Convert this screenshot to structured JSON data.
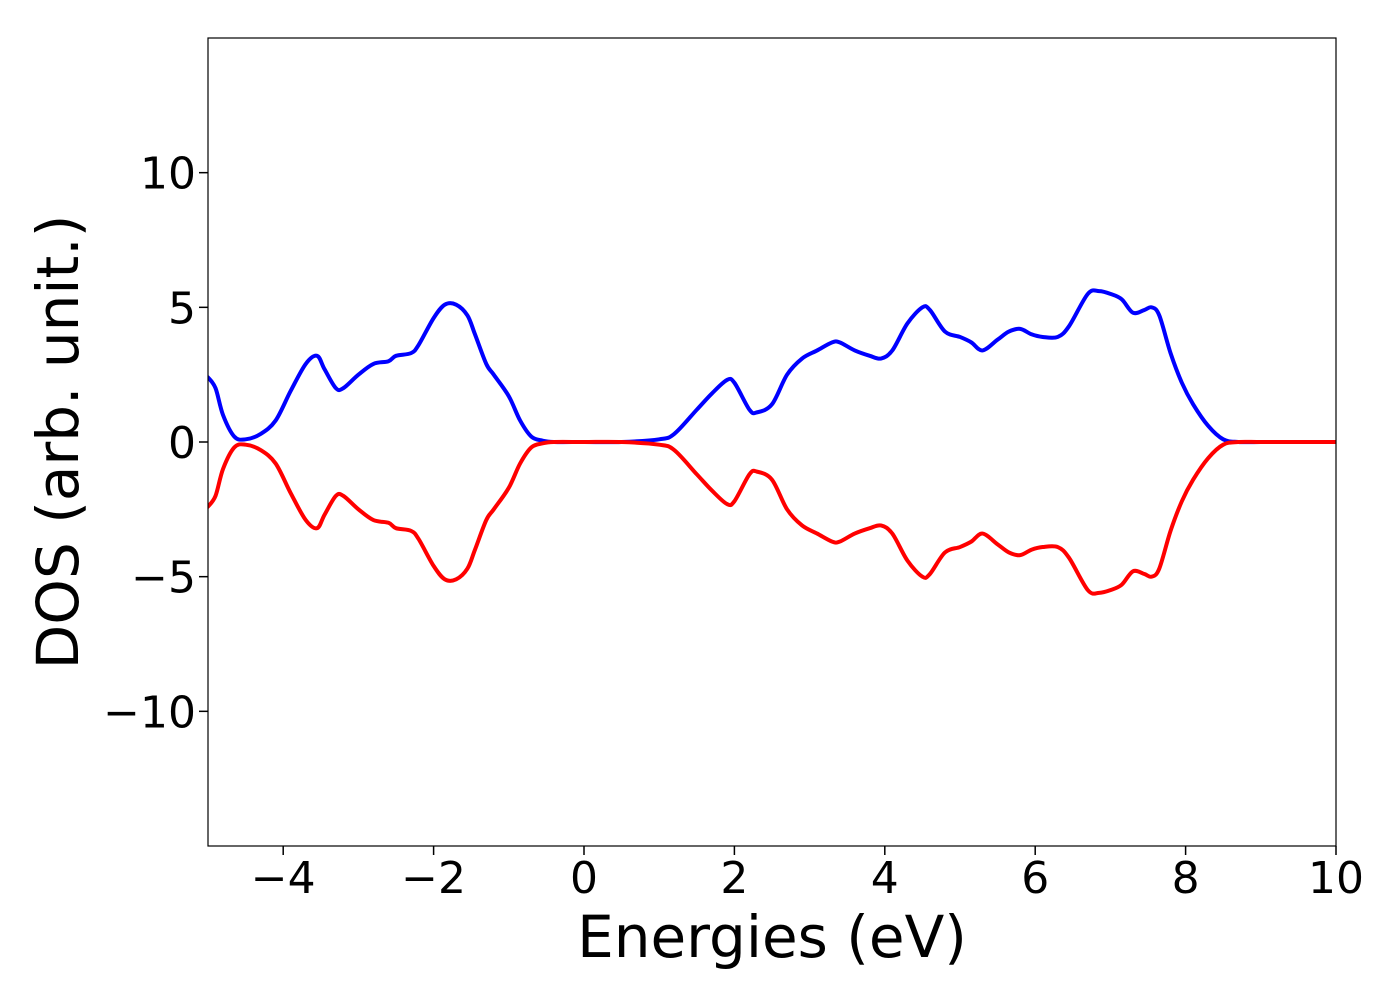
{
  "chart_data": {
    "type": "line",
    "title": "",
    "xlabel": "Energies (eV)",
    "ylabel": "DOS (arb. unit.)",
    "xlim": [
      -5,
      10
    ],
    "ylim": [
      -15,
      15
    ],
    "grid": false,
    "legend": "none",
    "x_ticks": [
      -4,
      -2,
      0,
      2,
      4,
      6,
      8,
      10
    ],
    "x_tick_labels": [
      "−4",
      "−2",
      "0",
      "2",
      "4",
      "6",
      "8",
      "10"
    ],
    "y_ticks": [
      -10,
      -5,
      0,
      5,
      10
    ],
    "y_tick_labels": [
      "−10",
      "−5",
      "0",
      "5",
      "10"
    ],
    "series": [
      {
        "color": "#0000ff",
        "x": [
          -5.0,
          -4.9,
          -4.8,
          -4.65,
          -4.5,
          -4.3,
          -4.1,
          -3.9,
          -3.7,
          -3.55,
          -3.45,
          -3.3,
          -3.2,
          -3.0,
          -2.8,
          -2.6,
          -2.5,
          -2.3,
          -2.2,
          -2.0,
          -1.85,
          -1.7,
          -1.55,
          -1.45,
          -1.3,
          -1.2,
          -1.0,
          -0.85,
          -0.7,
          -0.55,
          -0.4,
          0.0,
          0.5,
          1.0,
          1.2,
          1.5,
          1.7,
          1.9,
          2.0,
          2.2,
          2.3,
          2.5,
          2.7,
          2.9,
          3.1,
          3.3,
          3.4,
          3.6,
          3.8,
          3.95,
          4.1,
          4.3,
          4.5,
          4.6,
          4.8,
          5.0,
          5.15,
          5.3,
          5.5,
          5.65,
          5.8,
          5.95,
          6.1,
          6.3,
          6.45,
          6.7,
          6.85,
          7.0,
          7.15,
          7.3,
          7.45,
          7.55,
          7.65,
          7.8,
          7.95,
          8.1,
          8.3,
          8.5,
          8.7,
          9.0,
          9.5,
          10.0
        ],
        "y": [
          2.4,
          2.0,
          1.0,
          0.2,
          0.1,
          0.3,
          0.8,
          1.9,
          2.9,
          3.2,
          2.7,
          2.0,
          2.0,
          2.5,
          2.9,
          3.0,
          3.2,
          3.3,
          3.6,
          4.6,
          5.1,
          5.1,
          4.7,
          4.0,
          2.9,
          2.5,
          1.7,
          0.8,
          0.2,
          0.05,
          0.0,
          0.0,
          0.0,
          0.1,
          0.3,
          1.2,
          1.8,
          2.3,
          2.2,
          1.2,
          1.1,
          1.4,
          2.5,
          3.1,
          3.4,
          3.7,
          3.7,
          3.4,
          3.2,
          3.1,
          3.4,
          4.4,
          5.0,
          4.9,
          4.1,
          3.9,
          3.7,
          3.4,
          3.8,
          4.1,
          4.2,
          4.0,
          3.9,
          3.9,
          4.3,
          5.5,
          5.6,
          5.5,
          5.3,
          4.8,
          4.9,
          5.0,
          4.7,
          3.3,
          2.2,
          1.4,
          0.6,
          0.1,
          0.0,
          0.0,
          0.0,
          0.0
        ]
      },
      {
        "color": "#ff0000",
        "x": [
          -5.0,
          -4.9,
          -4.8,
          -4.65,
          -4.5,
          -4.3,
          -4.1,
          -3.9,
          -3.7,
          -3.55,
          -3.45,
          -3.3,
          -3.2,
          -3.0,
          -2.8,
          -2.6,
          -2.5,
          -2.3,
          -2.2,
          -2.0,
          -1.85,
          -1.7,
          -1.55,
          -1.45,
          -1.3,
          -1.2,
          -1.0,
          -0.85,
          -0.7,
          -0.55,
          -0.4,
          0.0,
          0.5,
          1.0,
          1.2,
          1.5,
          1.7,
          1.9,
          2.0,
          2.2,
          2.3,
          2.5,
          2.7,
          2.9,
          3.1,
          3.3,
          3.4,
          3.6,
          3.8,
          3.95,
          4.1,
          4.3,
          4.5,
          4.6,
          4.8,
          5.0,
          5.15,
          5.3,
          5.5,
          5.65,
          5.8,
          5.95,
          6.1,
          6.3,
          6.45,
          6.7,
          6.85,
          7.0,
          7.15,
          7.3,
          7.45,
          7.55,
          7.65,
          7.8,
          7.95,
          8.1,
          8.3,
          8.5,
          8.7,
          9.0,
          9.5,
          10.0
        ],
        "y": [
          -2.4,
          -2.0,
          -1.0,
          -0.2,
          -0.1,
          -0.3,
          -0.8,
          -1.9,
          -2.9,
          -3.2,
          -2.7,
          -2.0,
          -2.0,
          -2.5,
          -2.9,
          -3.0,
          -3.2,
          -3.3,
          -3.6,
          -4.6,
          -5.1,
          -5.1,
          -4.7,
          -4.0,
          -2.9,
          -2.5,
          -1.7,
          -0.8,
          -0.2,
          -0.05,
          0.0,
          0.0,
          0.0,
          -0.1,
          -0.3,
          -1.2,
          -1.8,
          -2.3,
          -2.2,
          -1.2,
          -1.1,
          -1.4,
          -2.5,
          -3.1,
          -3.4,
          -3.7,
          -3.7,
          -3.4,
          -3.2,
          -3.1,
          -3.4,
          -4.4,
          -5.0,
          -4.9,
          -4.1,
          -3.9,
          -3.7,
          -3.4,
          -3.8,
          -4.1,
          -4.2,
          -4.0,
          -3.9,
          -3.9,
          -4.3,
          -5.5,
          -5.6,
          -5.5,
          -5.3,
          -4.8,
          -4.9,
          -5.0,
          -4.7,
          -3.3,
          -2.2,
          -1.4,
          -0.6,
          -0.1,
          0.0,
          0.0,
          0.0,
          0.0
        ]
      }
    ]
  }
}
